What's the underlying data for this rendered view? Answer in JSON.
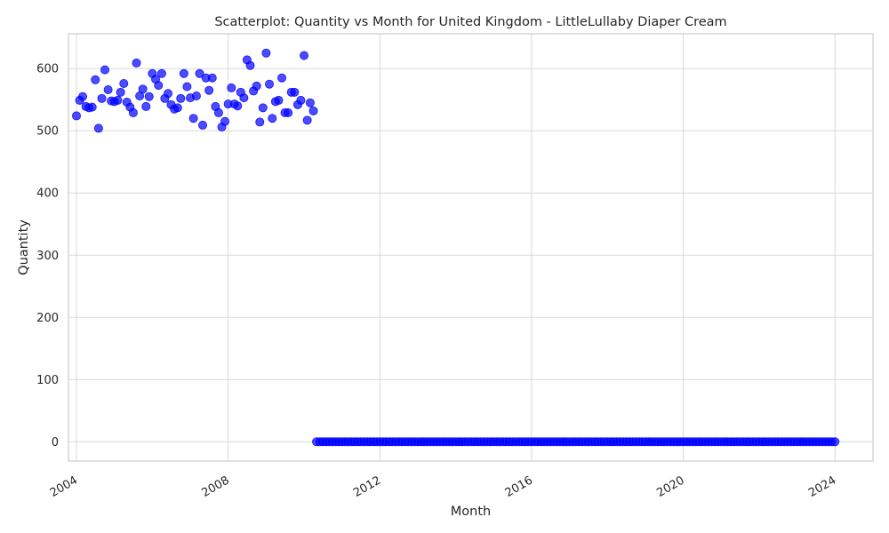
{
  "chart_data": {
    "type": "scatter",
    "title": "Scatterplot: Quantity vs Month for United Kingdom - LittleLullaby Diaper Cream",
    "xlabel": "Month",
    "ylabel": "Quantity",
    "x_ticks": [
      "2004",
      "2008",
      "2012",
      "2016",
      "2020",
      "2024"
    ],
    "y_ticks": [
      0,
      100,
      200,
      300,
      400,
      500,
      600
    ],
    "xlim": [
      "2003-10-16",
      "2025-01-01"
    ],
    "ylim": [
      -31,
      656
    ],
    "grid": true,
    "marker_color": "#0000ff",
    "series": [
      {
        "x": [
          "2004-01",
          "2004-02",
          "2004-03",
          "2004-04",
          "2004-05",
          "2004-06",
          "2004-07",
          "2004-08",
          "2004-09",
          "2004-10",
          "2004-11",
          "2004-12",
          "2005-01",
          "2005-02",
          "2005-03",
          "2005-04",
          "2005-05",
          "2005-06",
          "2005-07",
          "2005-08",
          "2005-09",
          "2005-10",
          "2005-11",
          "2005-12",
          "2006-01",
          "2006-02",
          "2006-03",
          "2006-04",
          "2006-05",
          "2006-06",
          "2006-07",
          "2006-08",
          "2006-09",
          "2006-10",
          "2006-11",
          "2006-12",
          "2007-01",
          "2007-02",
          "2007-03",
          "2007-04",
          "2007-05",
          "2007-06",
          "2007-07",
          "2007-08",
          "2007-09",
          "2007-10",
          "2007-11",
          "2007-12",
          "2008-01",
          "2008-02",
          "2008-03",
          "2008-04",
          "2008-05",
          "2008-06",
          "2008-07",
          "2008-08",
          "2008-09",
          "2008-10",
          "2008-11",
          "2008-12",
          "2009-01",
          "2009-02",
          "2009-03",
          "2009-04",
          "2009-05",
          "2009-06",
          "2009-07",
          "2009-08",
          "2009-09",
          "2009-10",
          "2009-11",
          "2009-12",
          "2010-01",
          "2010-02",
          "2010-03",
          "2010-04"
        ],
        "y": [
          524,
          549,
          555,
          539,
          537,
          538,
          582,
          504,
          552,
          598,
          566,
          548,
          547,
          549,
          562,
          576,
          546,
          538,
          529,
          609,
          556,
          567,
          539,
          555,
          592,
          583,
          573,
          592,
          552,
          560,
          542,
          535,
          537,
          552,
          592,
          571,
          553,
          520,
          556,
          592,
          509,
          585,
          565,
          585,
          539,
          529,
          506,
          515,
          543,
          569,
          543,
          540,
          562,
          553,
          614,
          605,
          564,
          572,
          514,
          537,
          625,
          575,
          520,
          547,
          549,
          585,
          529,
          529,
          562,
          562,
          542,
          549,
          621,
          517,
          545,
          532
        ]
      },
      {
        "x_range": [
          "2010-05",
          "2024-01"
        ],
        "y_constant": 0
      }
    ]
  }
}
